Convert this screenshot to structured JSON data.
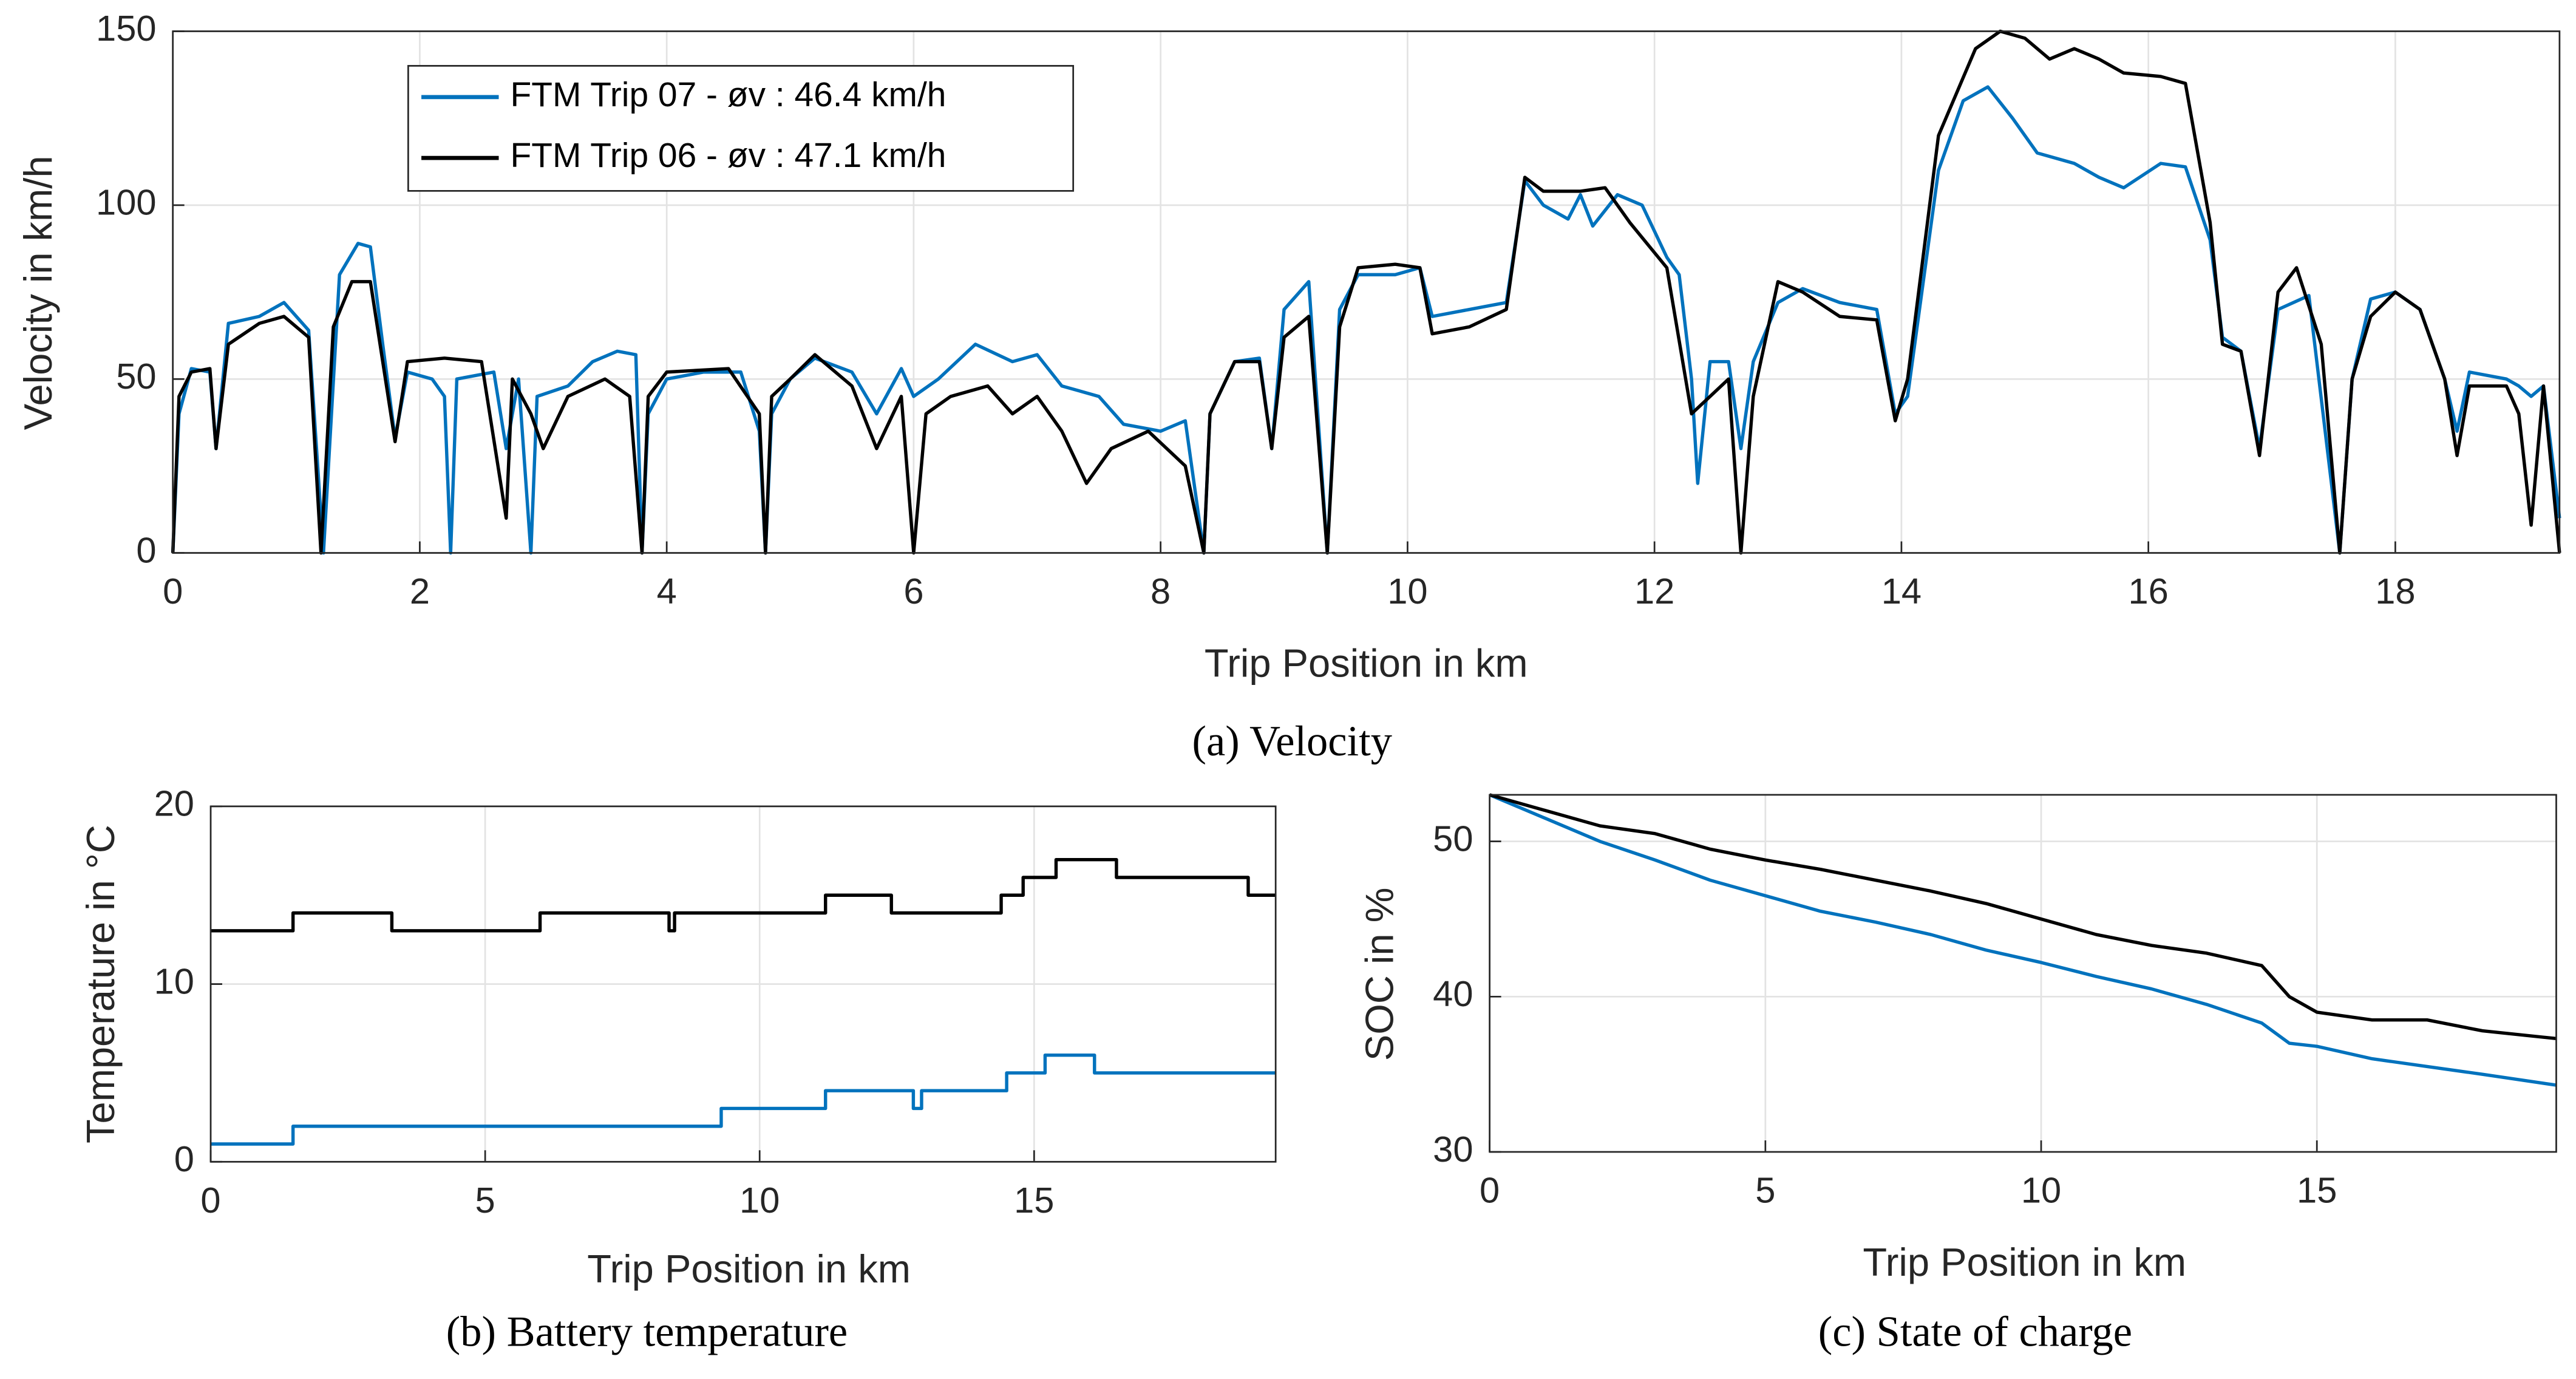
{
  "chart_data": [
    {
      "type": "line",
      "caption": "(a) Velocity",
      "xlabel": "Trip Position in km",
      "ylabel": "Velocity in km/h",
      "xlim": [
        0,
        19.33
      ],
      "xticks": [
        0,
        2,
        4,
        6,
        8,
        10,
        12,
        14,
        16,
        18
      ],
      "ylim": [
        0,
        150
      ],
      "yticks": [
        0,
        50,
        100,
        150
      ],
      "grid": true,
      "legend": "upper left",
      "series": [
        {
          "name": "FTM Trip 07 - øv : 46.4 km/h",
          "color": "#0072bd",
          "x": [
            0,
            0.05,
            0.15,
            0.3,
            0.35,
            0.45,
            0.7,
            0.9,
            1.1,
            1.22,
            1.35,
            1.5,
            1.6,
            1.7,
            1.8,
            1.9,
            2.1,
            2.2,
            2.25,
            2.3,
            2.6,
            2.7,
            2.8,
            2.9,
            2.95,
            3.2,
            3.4,
            3.6,
            3.75,
            3.8,
            3.85,
            4.0,
            4.3,
            4.6,
            4.75,
            4.8,
            4.85,
            5.0,
            5.2,
            5.5,
            5.7,
            5.9,
            6.0,
            6.2,
            6.5,
            6.8,
            7.0,
            7.2,
            7.5,
            7.7,
            8.0,
            8.2,
            8.35,
            8.4,
            8.6,
            8.8,
            8.9,
            9.0,
            9.2,
            9.35,
            9.45,
            9.6,
            9.9,
            10.1,
            10.2,
            10.5,
            10.8,
            10.95,
            11.1,
            11.3,
            11.4,
            11.5,
            11.7,
            11.9,
            12.1,
            12.2,
            12.3,
            12.35,
            12.45,
            12.6,
            12.7,
            12.8,
            13.0,
            13.2,
            13.5,
            13.8,
            13.95,
            14.05,
            14.3,
            14.5,
            14.7,
            14.9,
            15.1,
            15.4,
            15.6,
            15.8,
            16.1,
            16.3,
            16.5,
            16.6,
            16.75,
            16.9,
            17.05,
            17.3,
            17.55,
            17.65,
            17.8,
            18.0,
            18.2,
            18.4,
            18.5,
            18.6,
            18.9,
            19.0,
            19.1,
            19.2,
            19.33
          ],
          "values": [
            0,
            40,
            53,
            52,
            30,
            66,
            68,
            72,
            64,
            0,
            80,
            89,
            88,
            60,
            33,
            52,
            50,
            45,
            0,
            50,
            52,
            30,
            50,
            0,
            45,
            48,
            55,
            58,
            57,
            0,
            40,
            50,
            52,
            52,
            35,
            0,
            40,
            50,
            56,
            52,
            40,
            53,
            45,
            50,
            60,
            55,
            57,
            48,
            45,
            37,
            35,
            38,
            0,
            40,
            55,
            56,
            30,
            70,
            78,
            0,
            70,
            80,
            80,
            82,
            68,
            70,
            72,
            107,
            100,
            96,
            103,
            94,
            103,
            100,
            85,
            80,
            50,
            20,
            55,
            55,
            30,
            55,
            72,
            76,
            72,
            70,
            40,
            45,
            110,
            130,
            134,
            125,
            115,
            112,
            108,
            105,
            112,
            111,
            90,
            62,
            58,
            30,
            70,
            74,
            0,
            50,
            73,
            75,
            70,
            50,
            35,
            52,
            50,
            48,
            45,
            48,
            10
          ]
        },
        {
          "name": "FTM Trip 06 - øv : 47.1 km/h",
          "color": "#000000",
          "x": [
            0,
            0.05,
            0.15,
            0.3,
            0.35,
            0.45,
            0.7,
            0.9,
            1.1,
            1.2,
            1.3,
            1.45,
            1.6,
            1.7,
            1.8,
            1.9,
            2.2,
            2.5,
            2.7,
            2.75,
            2.9,
            3.0,
            3.2,
            3.5,
            3.7,
            3.8,
            3.85,
            4.0,
            4.5,
            4.75,
            4.8,
            4.85,
            5.0,
            5.2,
            5.5,
            5.7,
            5.9,
            6.0,
            6.1,
            6.3,
            6.6,
            6.8,
            7.0,
            7.2,
            7.4,
            7.6,
            7.9,
            8.2,
            8.35,
            8.4,
            8.6,
            8.8,
            8.9,
            9.0,
            9.2,
            9.35,
            9.45,
            9.6,
            9.9,
            10.1,
            10.2,
            10.5,
            10.8,
            10.95,
            11.1,
            11.4,
            11.6,
            11.8,
            12.1,
            12.3,
            12.45,
            12.6,
            12.7,
            12.8,
            13.0,
            13.2,
            13.5,
            13.8,
            13.95,
            14.05,
            14.3,
            14.6,
            14.8,
            15.0,
            15.2,
            15.4,
            15.6,
            15.8,
            16.1,
            16.3,
            16.5,
            16.6,
            16.75,
            16.9,
            17.05,
            17.2,
            17.4,
            17.55,
            17.65,
            17.8,
            18.0,
            18.2,
            18.4,
            18.5,
            18.6,
            18.9,
            19.0,
            19.1,
            19.2,
            19.33
          ],
          "values": [
            0,
            45,
            52,
            53,
            30,
            60,
            66,
            68,
            62,
            0,
            65,
            78,
            78,
            55,
            32,
            55,
            56,
            55,
            10,
            50,
            40,
            30,
            45,
            50,
            45,
            0,
            45,
            52,
            53,
            40,
            0,
            45,
            50,
            57,
            48,
            30,
            45,
            0,
            40,
            45,
            48,
            40,
            45,
            35,
            20,
            30,
            35,
            25,
            0,
            40,
            55,
            55,
            30,
            62,
            68,
            0,
            65,
            82,
            83,
            82,
            63,
            65,
            70,
            108,
            104,
            104,
            105,
            95,
            82,
            40,
            45,
            50,
            0,
            45,
            78,
            75,
            68,
            67,
            38,
            50,
            120,
            145,
            150,
            148,
            142,
            145,
            142,
            138,
            137,
            135,
            95,
            60,
            58,
            28,
            75,
            82,
            60,
            0,
            50,
            68,
            75,
            70,
            50,
            28,
            48,
            48,
            40,
            8,
            48,
            0
          ]
        }
      ]
    },
    {
      "type": "line",
      "caption": "(b) Battery temperature",
      "xlabel": "Trip Position in km",
      "ylabel": "Temperature in °C",
      "xlim": [
        0,
        19.4
      ],
      "xticks": [
        0,
        5,
        10,
        15
      ],
      "ylim": [
        0,
        20
      ],
      "yticks": [
        0,
        10,
        20
      ],
      "grid": true,
      "series": [
        {
          "name": "FTM Trip 07 - øv : 46.4 km/h",
          "color": "#0072bd",
          "x": [
            0,
            1.5,
            1.5,
            9.3,
            9.3,
            11.2,
            11.2,
            12.8,
            12.8,
            12.95,
            12.95,
            14.5,
            14.5,
            15.2,
            15.2,
            16.1,
            16.1,
            19.4
          ],
          "values": [
            1,
            1,
            2,
            2,
            3,
            3,
            4,
            4,
            3,
            3,
            4,
            4,
            5,
            5,
            6,
            6,
            5,
            5
          ]
        },
        {
          "name": "FTM Trip 06 - øv : 47.1 km/h",
          "color": "#000000",
          "x": [
            0,
            1.5,
            1.5,
            3.3,
            3.3,
            6.0,
            6.0,
            8.35,
            8.35,
            8.45,
            8.45,
            11.2,
            11.2,
            12.4,
            12.4,
            14.4,
            14.4,
            14.8,
            14.8,
            15.4,
            15.4,
            16.5,
            16.5,
            18.9,
            18.9,
            19.4
          ],
          "values": [
            13,
            13,
            14,
            14,
            13,
            13,
            14,
            14,
            13,
            13,
            14,
            14,
            15,
            15,
            14,
            14,
            15,
            15,
            16,
            16,
            17,
            17,
            16,
            16,
            15,
            15
          ]
        }
      ]
    },
    {
      "type": "line",
      "caption": "(c) State of charge",
      "xlabel": "Trip Position in km",
      "ylabel": "SOC in %",
      "xlim": [
        0,
        19.34
      ],
      "xticks": [
        0,
        5,
        10,
        15
      ],
      "ylim": [
        30,
        53
      ],
      "yticks": [
        30,
        40,
        50
      ],
      "grid": true,
      "series": [
        {
          "name": "FTM Trip 07 - øv : 46.4 km/h",
          "color": "#0072bd",
          "x": [
            0,
            1,
            2,
            3,
            4,
            5,
            6,
            7,
            8,
            9,
            10,
            11,
            12,
            13,
            14,
            14.5,
            15,
            16,
            17,
            18,
            19.34
          ],
          "values": [
            53,
            51.5,
            50,
            48.8,
            47.5,
            46.5,
            45.5,
            44.8,
            44,
            43,
            42.2,
            41.3,
            40.5,
            39.5,
            38.3,
            37,
            36.8,
            36,
            35.5,
            35,
            34.3
          ]
        },
        {
          "name": "FTM Trip 06 - øv : 47.1 km/h",
          "color": "#000000",
          "x": [
            0,
            1,
            2,
            3,
            4,
            5,
            6,
            7,
            8,
            9,
            10,
            11,
            12,
            13,
            14,
            14.5,
            15,
            16,
            17,
            18,
            19.34
          ],
          "values": [
            53,
            52,
            51,
            50.5,
            49.5,
            48.8,
            48.2,
            47.5,
            46.8,
            46,
            45,
            44,
            43.3,
            42.8,
            42,
            40,
            39,
            38.5,
            38.5,
            37.8,
            37.3
          ]
        }
      ]
    }
  ]
}
